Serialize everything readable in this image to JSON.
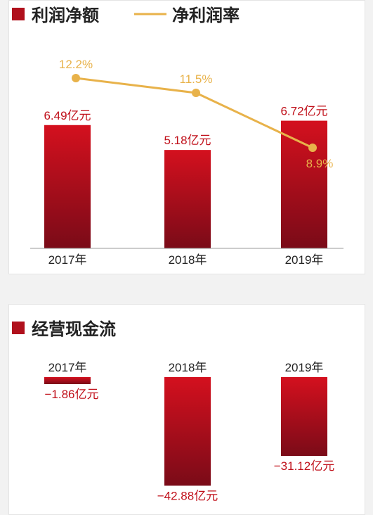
{
  "chart_data": [
    {
      "type": "bar",
      "legend": {
        "bar_series": "利润净额",
        "line_series": "净利润率"
      },
      "categories": [
        "2017年",
        "2018年",
        "2019年"
      ],
      "series": [
        {
          "name": "利润净额",
          "type": "bar",
          "values": [
            6.49,
            5.18,
            6.72
          ],
          "labels": [
            "6.49亿元",
            "5.18亿元",
            "6.72亿元"
          ],
          "color": "#b0101c"
        },
        {
          "name": "净利润率",
          "type": "line",
          "values": [
            12.2,
            11.5,
            8.9
          ],
          "labels": [
            "12.2%",
            "11.5%",
            "8.9%"
          ],
          "color": "#e8b24a"
        }
      ]
    },
    {
      "type": "bar",
      "legend": {
        "bar_series": "经营现金流"
      },
      "categories": [
        "2017年",
        "2018年",
        "2019年"
      ],
      "series": [
        {
          "name": "经营现金流",
          "type": "bar",
          "values": [
            -1.86,
            -42.88,
            -31.12
          ],
          "labels": [
            "−1.86亿元",
            "−42.88亿元",
            "−31.12亿元"
          ],
          "color": "#b0101c"
        }
      ]
    }
  ],
  "colors": {
    "bar_top": "#d4101e",
    "bar_bottom": "#7a0b18",
    "line": "#e8b24a",
    "value_text": "#c0101a",
    "axis": "#999999"
  }
}
